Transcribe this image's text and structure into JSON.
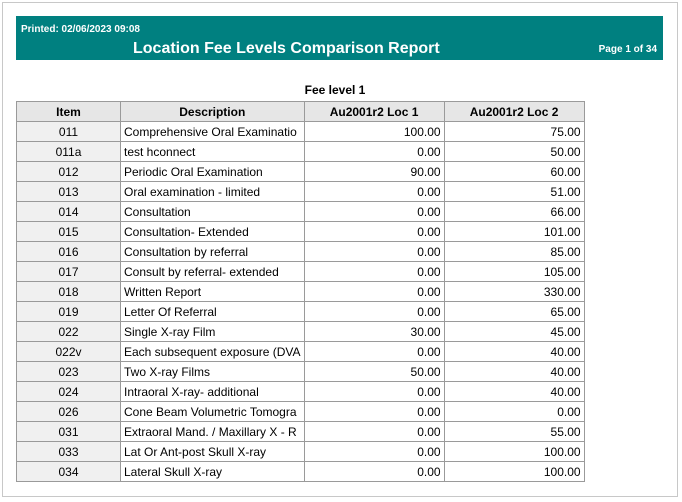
{
  "header": {
    "printed": "Printed: 02/06/2023 09:08",
    "title": "Location Fee Levels Comparison Report",
    "page": "Page 1 of 34"
  },
  "section": {
    "title": "Fee level 1"
  },
  "table": {
    "columns": [
      "Item",
      "Description",
      "Au2001r2 Loc 1",
      "Au2001r2 Loc 2"
    ],
    "rows": [
      [
        "011",
        "Comprehensive Oral Examinatio",
        "100.00",
        "75.00"
      ],
      [
        "011a",
        "test hconnect",
        "0.00",
        "50.00"
      ],
      [
        "012",
        "Periodic Oral Examination",
        "90.00",
        "60.00"
      ],
      [
        "013",
        "Oral examination - limited",
        "0.00",
        "51.00"
      ],
      [
        "014",
        "Consultation",
        "0.00",
        "66.00"
      ],
      [
        "015",
        "Consultation- Extended",
        "0.00",
        "101.00"
      ],
      [
        "016",
        "Consultation by referral",
        "0.00",
        "85.00"
      ],
      [
        "017",
        "Consult by referral- extended",
        "0.00",
        "105.00"
      ],
      [
        "018",
        "Written Report",
        "0.00",
        "330.00"
      ],
      [
        "019",
        "Letter Of Referral",
        "0.00",
        "65.00"
      ],
      [
        "022",
        "Single X-ray Film",
        "30.00",
        "45.00"
      ],
      [
        "022v",
        "Each subsequent exposure (DVA",
        "0.00",
        "40.00"
      ],
      [
        "023",
        "Two X-ray Films",
        "50.00",
        "40.00"
      ],
      [
        "024",
        "Intraoral X-ray- additional",
        "0.00",
        "40.00"
      ],
      [
        "026",
        "Cone Beam Volumetric Tomogra",
        "0.00",
        "0.00"
      ],
      [
        "031",
        "Extraoral Mand. / Maxillary X - R",
        "0.00",
        "55.00"
      ],
      [
        "033",
        "Lat Or Ant-post Skull X-ray",
        "0.00",
        "100.00"
      ],
      [
        "034",
        "Lateral Skull X-ray",
        "0.00",
        "100.00"
      ]
    ]
  }
}
